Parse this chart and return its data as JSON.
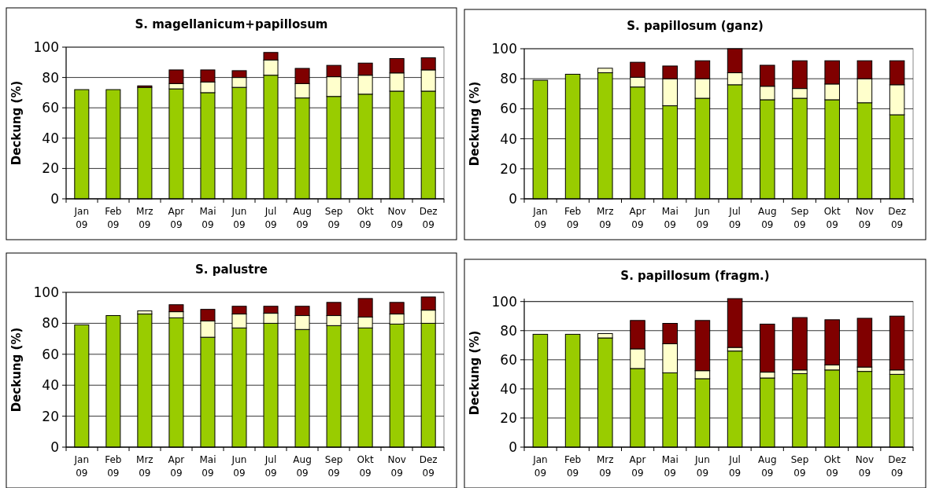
{
  "chart_data": [
    {
      "type": "bar",
      "title": "S. magellanicum+papillosum",
      "ylabel": "Deckung (%)",
      "stacked": true,
      "grid": "y",
      "ylim": [
        0,
        100
      ],
      "yticks": [
        0,
        20,
        40,
        60,
        80,
        100
      ],
      "categories": [
        "Jan 09",
        "Feb 09",
        "Mrz 09",
        "Apr 09",
        "Mai 09",
        "Jun 09",
        "Jul 09",
        "Aug 09",
        "Sep 09",
        "Okt 09",
        "Nov 09",
        "Dez 09"
      ],
      "series": [
        {
          "color": "#99cc00",
          "values": [
            72,
            72,
            73.5,
            72.5,
            70,
            73.5,
            81.5,
            66.5,
            67.5,
            69,
            71,
            71
          ]
        },
        {
          "color": "#ffffcc",
          "values": [
            null,
            null,
            null,
            3.5,
            7,
            6.5,
            10,
            9.5,
            13,
            12.5,
            12,
            14
          ]
        },
        {
          "color": "#800000",
          "values": [
            null,
            null,
            1,
            9,
            8,
            4.5,
            5,
            10,
            7.5,
            8,
            9.5,
            8
          ]
        }
      ]
    },
    {
      "type": "bar",
      "title": "S. papillosum (ganz)",
      "ylabel": "Deckung (%)",
      "stacked": true,
      "grid": "y",
      "ylim": [
        0,
        100
      ],
      "yticks": [
        0,
        20,
        40,
        60,
        80,
        100
      ],
      "categories": [
        "Jan 09",
        "Feb 09",
        "Mrz 09",
        "Apr 09",
        "Mai 09",
        "Jun 09",
        "Jul 09",
        "Aug 09",
        "Sep 09",
        "Okt 09",
        "Nov 09",
        "Dez 09"
      ],
      "series": [
        {
          "color": "#99cc00",
          "values": [
            79,
            83,
            84,
            74.5,
            62,
            67,
            76,
            66,
            67,
            66,
            64,
            56
          ]
        },
        {
          "color": "#ffffcc",
          "values": [
            null,
            null,
            3,
            6.5,
            18,
            13,
            8,
            9,
            6.5,
            10.5,
            16,
            20
          ]
        },
        {
          "color": "#800000",
          "values": [
            null,
            null,
            null,
            10,
            8.5,
            12,
            16,
            14,
            18.5,
            15.5,
            12,
            16
          ]
        }
      ]
    },
    {
      "type": "bar",
      "title": "S. palustre",
      "ylabel": "Deckung (%)",
      "stacked": true,
      "grid": "y",
      "ylim": [
        0,
        100
      ],
      "yticks": [
        0,
        20,
        40,
        60,
        80,
        100
      ],
      "categories": [
        "Jan 09",
        "Feb 09",
        "Mrz 09",
        "Apr 09",
        "Mai 09",
        "Jun 09",
        "Jul 09",
        "Aug 09",
        "Sep 09",
        "Okt 09",
        "Nov 09",
        "Dez 09"
      ],
      "series": [
        {
          "color": "#99cc00",
          "values": [
            79,
            85,
            86,
            83.5,
            71,
            77,
            80,
            76,
            78.5,
            77,
            79.5,
            80
          ]
        },
        {
          "color": "#ffffcc",
          "values": [
            null,
            null,
            2,
            4,
            10.5,
            9,
            6.5,
            9,
            6.5,
            7,
            6.5,
            8.5
          ]
        },
        {
          "color": "#800000",
          "values": [
            null,
            null,
            null,
            4.5,
            7.5,
            5,
            4.5,
            6,
            8.5,
            12,
            7.5,
            8.5
          ]
        }
      ]
    },
    {
      "type": "bar",
      "title": "S. papillosum (fragm.)",
      "ylabel": "Deckung (%)",
      "stacked": true,
      "grid": "y",
      "ylim": [
        0,
        102
      ],
      "yticks": [
        0,
        20,
        40,
        60,
        80,
        100
      ],
      "categories": [
        "Jan 09",
        "Feb 09",
        "Mrz 09",
        "Apr 09",
        "Mai 09",
        "Jun 09",
        "Jul 09",
        "Aug 09",
        "Sep 09",
        "Okt 09",
        "Nov 09",
        "Dez 09"
      ],
      "series": [
        {
          "color": "#99cc00",
          "values": [
            77.5,
            77.5,
            75,
            54,
            51,
            47,
            66,
            47.5,
            50.5,
            53,
            52,
            50
          ]
        },
        {
          "color": "#ffffcc",
          "values": [
            null,
            null,
            3,
            13.5,
            20,
            5.5,
            2.5,
            4,
            2.5,
            3.5,
            3,
            3
          ]
        },
        {
          "color": "#800000",
          "values": [
            null,
            null,
            null,
            19.5,
            14,
            34.5,
            33.5,
            33,
            36,
            31,
            33.5,
            37
          ]
        }
      ]
    }
  ]
}
